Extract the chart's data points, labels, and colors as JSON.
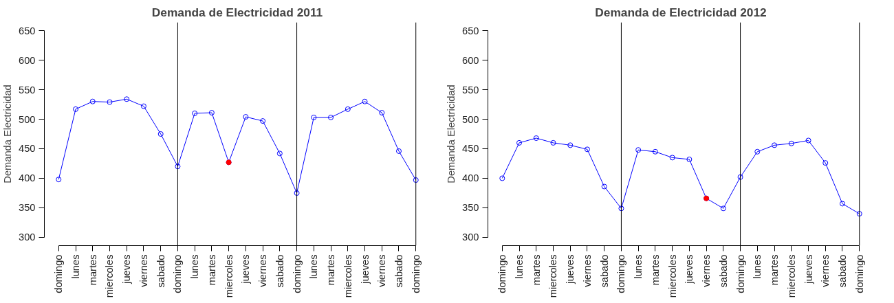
{
  "chart_data": [
    {
      "type": "line",
      "title": "Demanda de Electricidad 2011",
      "ylabel": "Demanda Electricidad",
      "categories": [
        "domingo",
        "lunes",
        "martes",
        "miercoles",
        "jueves",
        "viernes",
        "sabado",
        "domingo",
        "lunes",
        "martes",
        "miercoles",
        "jueves",
        "viernes",
        "sabado",
        "domingo",
        "lunes",
        "martes",
        "miercoles",
        "jueves",
        "viernes",
        "sabado",
        "domingo"
      ],
      "ylim": [
        286,
        664
      ],
      "yticks": [
        300,
        350,
        400,
        450,
        500,
        550,
        600,
        650
      ],
      "marker": "circle",
      "line_style": "solid",
      "series": [
        {
          "color": "#0000ff",
          "values": [
            398,
            517,
            530,
            529,
            534,
            522,
            475,
            420,
            510,
            511,
            427,
            504,
            497,
            442,
            375,
            503,
            503,
            517,
            530,
            511,
            446,
            397
          ]
        },
        {
          "type": "scatter",
          "color": "#ff0000",
          "values": [
            null,
            null,
            null,
            null,
            null,
            null,
            null,
            null,
            null,
            null,
            427,
            null,
            null,
            null,
            null,
            null,
            null,
            null,
            null,
            null,
            null,
            null
          ]
        }
      ]
    },
    {
      "type": "line",
      "title": "Demanda de Electricidad 2012",
      "ylabel": "Demanda Electricidad",
      "categories": [
        "domingo",
        "lunes",
        "martes",
        "miercoles",
        "jueves",
        "viernes",
        "sabado",
        "domingo",
        "lunes",
        "martes",
        "miercoles",
        "jueves",
        "viernes",
        "sabado",
        "domingo",
        "lunes",
        "martes",
        "miercoles",
        "jueves",
        "viernes",
        "sabado",
        "domingo"
      ],
      "ylim": [
        286,
        664
      ],
      "yticks": [
        300,
        350,
        400,
        450,
        500,
        550,
        600,
        650
      ],
      "marker": "circle",
      "line_style": "solid",
      "series": [
        {
          "color": "#0000ff",
          "values": [
            400,
            460,
            468,
            460,
            456,
            449,
            386,
            349,
            448,
            445,
            435,
            432,
            366,
            349,
            402,
            445,
            456,
            459,
            464,
            426,
            357,
            340
          ]
        },
        {
          "type": "scatter",
          "color": "#ff0000",
          "values": [
            null,
            null,
            null,
            null,
            null,
            null,
            null,
            null,
            null,
            null,
            null,
            null,
            366,
            null,
            null,
            null,
            null,
            null,
            null,
            null,
            null,
            null
          ]
        }
      ]
    }
  ]
}
